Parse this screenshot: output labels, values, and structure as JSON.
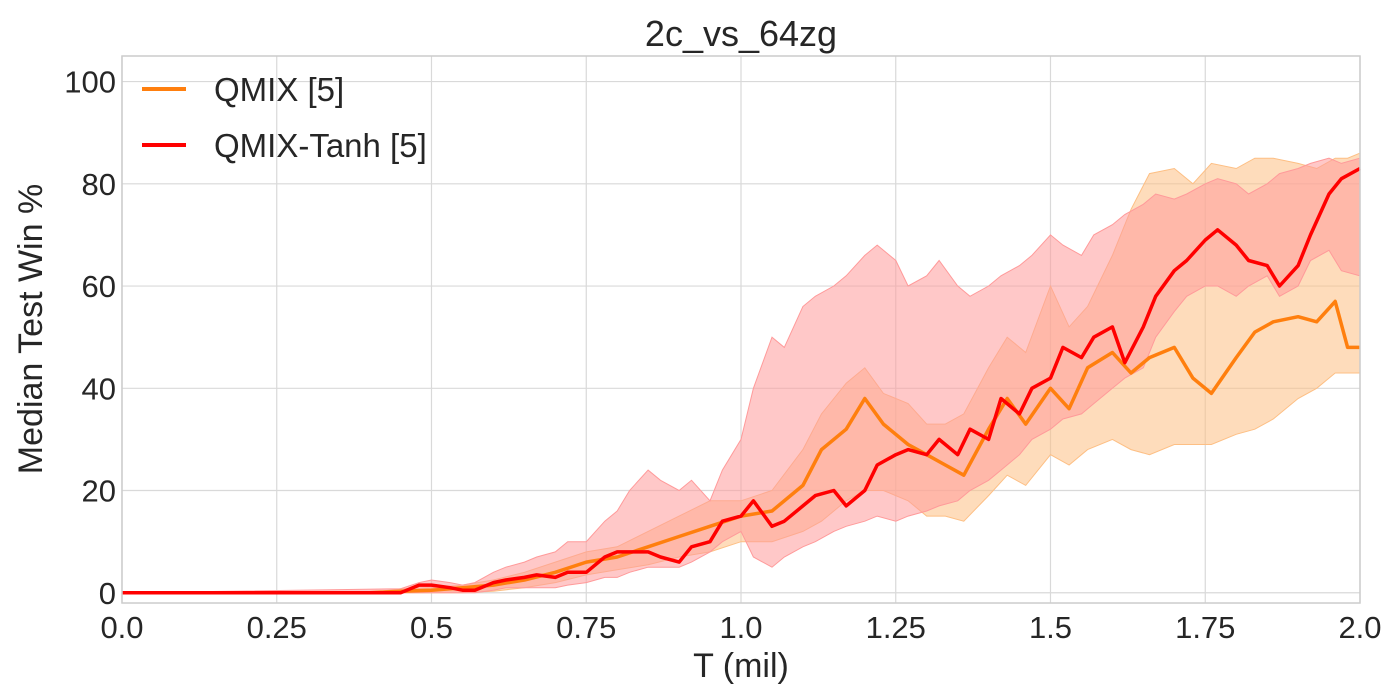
{
  "chart_data": {
    "type": "line",
    "title": "2c_vs_64zg",
    "xlabel": "T (mil)",
    "ylabel": "Median Test Win %",
    "xlim": [
      0.0,
      2.0
    ],
    "ylim": [
      -2,
      105
    ],
    "xticks": [
      0.0,
      0.25,
      0.5,
      0.75,
      1.0,
      1.25,
      1.5,
      1.75,
      2.0
    ],
    "xtick_labels": [
      "0.0",
      "0.25",
      "0.5",
      "0.75",
      "1.0",
      "1.25",
      "1.5",
      "1.75",
      "2.0"
    ],
    "yticks": [
      0,
      20,
      40,
      60,
      80,
      100
    ],
    "ytick_labels": [
      "0",
      "20",
      "40",
      "60",
      "80",
      "100"
    ],
    "grid": true,
    "legend_position": "top-left",
    "series": [
      {
        "name": "QMIX [5]",
        "color": "#ff7f0e",
        "band_color": "#fdbf84",
        "x": [
          0.0,
          0.4,
          0.45,
          0.5,
          0.55,
          0.6,
          0.65,
          0.7,
          0.75,
          0.8,
          0.85,
          0.9,
          0.95,
          1.0,
          1.05,
          1.1,
          1.13,
          1.17,
          1.2,
          1.23,
          1.27,
          1.3,
          1.33,
          1.36,
          1.4,
          1.43,
          1.46,
          1.5,
          1.53,
          1.56,
          1.6,
          1.63,
          1.66,
          1.7,
          1.73,
          1.76,
          1.8,
          1.83,
          1.86,
          1.9,
          1.93,
          1.96,
          1.98,
          2.0
        ],
        "median": [
          0,
          0,
          0.3,
          0.5,
          1,
          1.5,
          2.5,
          4,
          6,
          7,
          9,
          11,
          13,
          15,
          16,
          21,
          28,
          32,
          38,
          33,
          29,
          27,
          25,
          23,
          32,
          38,
          33,
          40,
          36,
          44,
          47,
          43,
          46,
          48,
          42,
          39,
          46,
          51,
          53,
          54,
          53,
          57,
          48,
          48
        ],
        "lower": [
          0,
          0,
          0,
          0,
          0,
          0.3,
          1,
          2,
          3.5,
          4.5,
          5.5,
          7,
          8,
          10,
          10,
          12,
          14,
          18,
          20,
          20,
          18,
          15,
          15,
          14,
          19,
          23,
          21,
          27,
          25,
          28,
          30,
          28,
          27,
          29,
          29,
          29,
          31,
          32,
          34,
          38,
          40,
          43,
          43,
          43
        ],
        "upper": [
          0,
          0,
          0.8,
          1,
          1.5,
          2.5,
          4,
          6,
          8,
          9,
          12,
          15,
          18,
          18,
          20,
          28,
          35,
          41,
          44,
          39,
          37,
          33,
          33,
          35,
          44,
          50,
          47,
          60,
          52,
          56,
          66,
          75,
          82,
          83,
          80,
          84,
          83,
          85,
          85,
          84,
          83,
          85,
          85,
          86
        ]
      },
      {
        "name": "QMIX-Tanh [5]",
        "color": "#ff0000",
        "band_color": "#ff9a9a",
        "x": [
          0.0,
          0.45,
          0.48,
          0.5,
          0.53,
          0.55,
          0.57,
          0.6,
          0.62,
          0.65,
          0.67,
          0.7,
          0.72,
          0.75,
          0.78,
          0.8,
          0.82,
          0.85,
          0.87,
          0.9,
          0.92,
          0.95,
          0.97,
          1.0,
          1.02,
          1.05,
          1.07,
          1.1,
          1.12,
          1.15,
          1.17,
          1.2,
          1.22,
          1.25,
          1.27,
          1.3,
          1.32,
          1.35,
          1.37,
          1.4,
          1.42,
          1.45,
          1.47,
          1.5,
          1.52,
          1.55,
          1.57,
          1.6,
          1.62,
          1.65,
          1.67,
          1.7,
          1.72,
          1.75,
          1.77,
          1.8,
          1.82,
          1.85,
          1.87,
          1.9,
          1.92,
          1.95,
          1.97,
          2.0
        ],
        "median": [
          0,
          0,
          1.5,
          1.5,
          1,
          0.5,
          0.5,
          2,
          2.5,
          3,
          3.5,
          3,
          4,
          4,
          7,
          8,
          8,
          8,
          7,
          6,
          9,
          10,
          14,
          15,
          18,
          13,
          14,
          17,
          19,
          20,
          17,
          20,
          25,
          27,
          28,
          27,
          30,
          27,
          32,
          30,
          38,
          35,
          40,
          42,
          48,
          46,
          50,
          52,
          45,
          52,
          58,
          63,
          65,
          69,
          71,
          68,
          65,
          64,
          60,
          64,
          70,
          78,
          81,
          83
        ],
        "lower": [
          0,
          0,
          0,
          0,
          0,
          0,
          0,
          0.5,
          1,
          1,
          1,
          1,
          1.5,
          2,
          3,
          3,
          4,
          5,
          5,
          5,
          6,
          8,
          10,
          12,
          7,
          5,
          7,
          9,
          10,
          12,
          13,
          14,
          15,
          14,
          15,
          16,
          17,
          18,
          20,
          22,
          24,
          27,
          30,
          32,
          34,
          35,
          37,
          40,
          42,
          44,
          50,
          55,
          58,
          60,
          60,
          58,
          60,
          62,
          58,
          60,
          65,
          67,
          63,
          62
        ],
        "upper": [
          0,
          0.8,
          2,
          2.5,
          2,
          1.5,
          2,
          4,
          5,
          6,
          7,
          8,
          10,
          10,
          14,
          16,
          20,
          24,
          22,
          20,
          22,
          18,
          24,
          30,
          40,
          50,
          48,
          56,
          58,
          60,
          62,
          66,
          68,
          65,
          60,
          62,
          65,
          60,
          58,
          60,
          62,
          64,
          66,
          70,
          68,
          66,
          70,
          72,
          74,
          76,
          78,
          77,
          78,
          80,
          81,
          80,
          78,
          80,
          82,
          83,
          84,
          85,
          84,
          85
        ]
      }
    ]
  }
}
